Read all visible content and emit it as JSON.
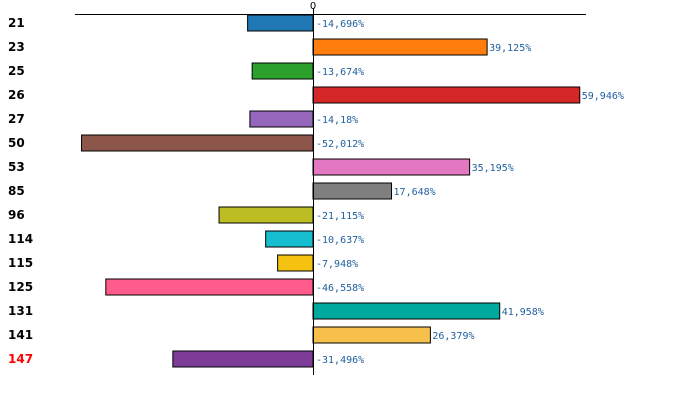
{
  "chart_data": {
    "type": "bar",
    "orientation": "horizontal",
    "zero_label": "0",
    "xlim": [
      -60,
      60
    ],
    "categories": [
      "21",
      "23",
      "25",
      "26",
      "27",
      "50",
      "53",
      "85",
      "96",
      "114",
      "115",
      "125",
      "131",
      "141",
      "147"
    ],
    "values": [
      -14.696,
      39.125,
      -13.674,
      59.946,
      -14.18,
      -52.012,
      35.195,
      17.648,
      -21.115,
      -10.637,
      -7.948,
      -46.558,
      41.958,
      26.379,
      -31.496
    ],
    "value_labels": [
      "-14,696%",
      "39,125%",
      "-13,674%",
      "59,946%",
      "-14,18%",
      "-52,012%",
      "35,195%",
      "17,648%",
      "-21,115%",
      "-10,637%",
      "-7,948%",
      "-46,558%",
      "41,958%",
      "26,379%",
      "-31,496%"
    ],
    "bar_colors": [
      "#1f77b4",
      "#ff7f0e",
      "#2ca02c",
      "#d62728",
      "#9467bd",
      "#8c564b",
      "#e377c2",
      "#7f7f7f",
      "#bcbd22",
      "#17becf",
      "#f5c211",
      "#ff5c8d",
      "#00a99d",
      "#f7c04a",
      "#7d3c98"
    ],
    "label_colors": [
      "#000000",
      "#000000",
      "#000000",
      "#000000",
      "#000000",
      "#000000",
      "#000000",
      "#000000",
      "#000000",
      "#000000",
      "#000000",
      "#000000",
      "#000000",
      "#000000",
      "#ff0000"
    ],
    "value_label_color": "#1f5f9f"
  }
}
